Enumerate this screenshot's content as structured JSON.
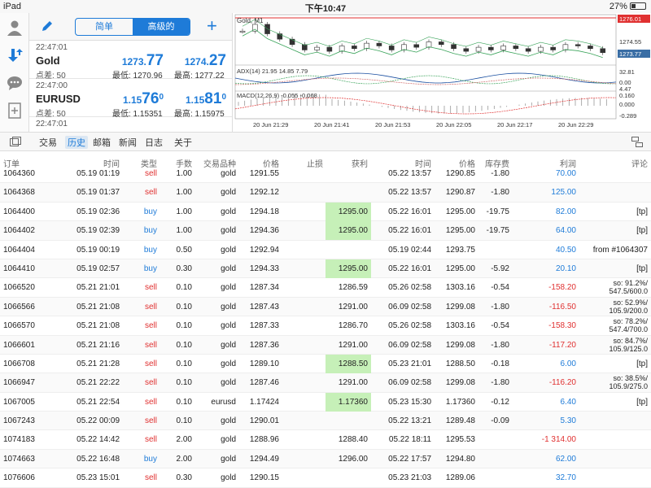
{
  "status": {
    "device": "iPad",
    "time": "下午10:47",
    "battery": "27%"
  },
  "quotes": {
    "mode_simple": "简单",
    "mode_advanced": "高级的",
    "rows": [
      {
        "time": "22:47:01",
        "symbol": "Gold",
        "spread": "点差: 50",
        "bid_a": "1273.",
        "bid_b": "77",
        "bid_c": "",
        "ask_a": "1274.",
        "ask_b": "27",
        "ask_c": "",
        "low": "最低: 1270.96",
        "high": "最高: 1277.22"
      },
      {
        "time": "22:47:00",
        "symbol": "EURUSD",
        "spread": "点差: 50",
        "bid_a": "1.15",
        "bid_b": "76",
        "bid_c": "0",
        "ask_a": "1.15",
        "ask_b": "81",
        "ask_c": "0",
        "low": "最低: 1.15351",
        "high": "最高: 1.15975"
      },
      {
        "time": "22:47:01",
        "symbol": "",
        "spread": "",
        "bid_a": "",
        "bid_b": "",
        "bid_c": "",
        "ask_a": "",
        "ask_b": "",
        "ask_c": "",
        "low": "",
        "high": ""
      }
    ]
  },
  "chart_data": {
    "type": "line",
    "title": "Gold, M1",
    "price_labels": [
      "1276.01",
      "1274.55",
      "1273.77"
    ],
    "adx_label": "ADX(14) 21.95 14.85 7.79",
    "adx_ticks": [
      "32.81",
      "0.00"
    ],
    "macd_label": "MACD(12,26,9) -0.055 -0.068",
    "macd_ticks": [
      "4.47",
      "0.160",
      "0.000",
      "-0.289"
    ],
    "x_labels": [
      "20 Jun 21:29",
      "20 Jun 21:41",
      "20 Jun 21:53",
      "20 Jun 22:05",
      "20 Jun 22:17",
      "20 Jun 22:29"
    ],
    "close": [
      1275.4,
      1275.9,
      1275.2,
      1274.8,
      1274.4,
      1274.0,
      1274.2,
      1273.9,
      1274.3,
      1274.1,
      1274.5,
      1274.3,
      1274.0,
      1274.4,
      1274.2,
      1274.6,
      1274.4,
      1274.1,
      1273.9,
      1274.2,
      1274.0,
      1274.3,
      1274.1,
      1273.9,
      1274.2,
      1274.0,
      1274.4,
      1274.3,
      1274.1,
      1273.8
    ],
    "ylim": [
      1273.0,
      1276.5
    ]
  },
  "tabs": [
    "交易",
    "历史",
    "邮箱",
    "新闻",
    "日志",
    "关于"
  ],
  "active_tab": "历史",
  "columns": [
    "订单",
    "时间",
    "类型",
    "手数",
    "交易品种",
    "价格",
    "止损",
    "获利",
    "时间",
    "价格",
    "库存费",
    "利润",
    "评论"
  ],
  "rows": [
    {
      "order": "1064360",
      "t1": "05.19 01:19",
      "type": "sell",
      "lots": "1.00",
      "sym": "gold",
      "price": "1291.55",
      "sl": "",
      "tp": "",
      "t2": "05.22 13:57",
      "p2": "1290.85",
      "swap": "-1.80",
      "profit": "70.00",
      "c1": "",
      "c2": ""
    },
    {
      "order": "1064368",
      "t1": "05.19 01:37",
      "type": "sell",
      "lots": "1.00",
      "sym": "gold",
      "price": "1292.12",
      "sl": "",
      "tp": "",
      "t2": "05.22 13:57",
      "p2": "1290.87",
      "swap": "-1.80",
      "profit": "125.00",
      "c1": "",
      "c2": ""
    },
    {
      "order": "1064400",
      "t1": "05.19 02:36",
      "type": "buy",
      "lots": "1.00",
      "sym": "gold",
      "price": "1294.18",
      "sl": "",
      "tp": "1295.00",
      "t2": "05.22 16:01",
      "p2": "1295.00",
      "swap": "-19.75",
      "profit": "82.00",
      "c1": "[tp]",
      "c2": ""
    },
    {
      "order": "1064402",
      "t1": "05.19 02:39",
      "type": "buy",
      "lots": "1.00",
      "sym": "gold",
      "price": "1294.36",
      "sl": "",
      "tp": "1295.00",
      "t2": "05.22 16:01",
      "p2": "1295.00",
      "swap": "-19.75",
      "profit": "64.00",
      "c1": "[tp]",
      "c2": ""
    },
    {
      "order": "1064404",
      "t1": "05.19 00:19",
      "type": "buy",
      "lots": "0.50",
      "sym": "gold",
      "price": "1292.94",
      "sl": "",
      "tp": "",
      "t2": "05.19 02:44",
      "p2": "1293.75",
      "swap": "",
      "profit": "40.50",
      "c1": "from #1064307",
      "c2": ""
    },
    {
      "order": "1064410",
      "t1": "05.19 02:57",
      "type": "buy",
      "lots": "0.30",
      "sym": "gold",
      "price": "1294.33",
      "sl": "",
      "tp": "1295.00",
      "t2": "05.22 16:01",
      "p2": "1295.00",
      "swap": "-5.92",
      "profit": "20.10",
      "c1": "[tp]",
      "c2": ""
    },
    {
      "order": "1066520",
      "t1": "05.21 21:01",
      "type": "sell",
      "lots": "0.10",
      "sym": "gold",
      "price": "1287.34",
      "sl": "",
      "tp": "1286.59",
      "t2": "05.26 02:58",
      "p2": "1303.16",
      "swap": "-0.54",
      "profit": "-158.20",
      "c1": "so: 91.2%/",
      "c2": "547.5/600.0"
    },
    {
      "order": "1066566",
      "t1": "05.21 21:08",
      "type": "sell",
      "lots": "0.10",
      "sym": "gold",
      "price": "1287.43",
      "sl": "",
      "tp": "1291.00",
      "t2": "06.09 02:58",
      "p2": "1299.08",
      "swap": "-1.80",
      "profit": "-116.50",
      "c1": "so: 52.9%/",
      "c2": "105.9/200.0"
    },
    {
      "order": "1066570",
      "t1": "05.21 21:08",
      "type": "sell",
      "lots": "0.10",
      "sym": "gold",
      "price": "1287.33",
      "sl": "",
      "tp": "1286.70",
      "t2": "05.26 02:58",
      "p2": "1303.16",
      "swap": "-0.54",
      "profit": "-158.30",
      "c1": "so: 78.2%/",
      "c2": "547.4/700.0"
    },
    {
      "order": "1066601",
      "t1": "05.21 21:16",
      "type": "sell",
      "lots": "0.10",
      "sym": "gold",
      "price": "1287.36",
      "sl": "",
      "tp": "1291.00",
      "t2": "06.09 02:58",
      "p2": "1299.08",
      "swap": "-1.80",
      "profit": "-117.20",
      "c1": "so: 84.7%/",
      "c2": "105.9/125.0"
    },
    {
      "order": "1066708",
      "t1": "05.21 21:28",
      "type": "sell",
      "lots": "0.10",
      "sym": "gold",
      "price": "1289.10",
      "sl": "",
      "tp": "1288.50",
      "t2": "05.23 21:01",
      "p2": "1288.50",
      "swap": "-0.18",
      "profit": "6.00",
      "c1": "[tp]",
      "c2": ""
    },
    {
      "order": "1066947",
      "t1": "05.21 22:22",
      "type": "sell",
      "lots": "0.10",
      "sym": "gold",
      "price": "1287.46",
      "sl": "",
      "tp": "1291.00",
      "t2": "06.09 02:58",
      "p2": "1299.08",
      "swap": "-1.80",
      "profit": "-116.20",
      "c1": "so: 38.5%/",
      "c2": "105.9/275.0"
    },
    {
      "order": "1067005",
      "t1": "05.21 22:54",
      "type": "sell",
      "lots": "0.10",
      "sym": "eurusd",
      "price": "1.17424",
      "sl": "",
      "tp": "1.17360",
      "t2": "05.23 15:30",
      "p2": "1.17360",
      "swap": "-0.12",
      "profit": "6.40",
      "c1": "[tp]",
      "c2": ""
    },
    {
      "order": "1067243",
      "t1": "05.22 00:09",
      "type": "sell",
      "lots": "0.10",
      "sym": "gold",
      "price": "1290.01",
      "sl": "",
      "tp": "",
      "t2": "05.22 13:21",
      "p2": "1289.48",
      "swap": "-0.09",
      "profit": "5.30",
      "c1": "",
      "c2": ""
    },
    {
      "order": "1074183",
      "t1": "05.22 14:42",
      "type": "sell",
      "lots": "2.00",
      "sym": "gold",
      "price": "1288.96",
      "sl": "",
      "tp": "1288.40",
      "t2": "05.22 18:11",
      "p2": "1295.53",
      "swap": "",
      "profit": "-1 314.00",
      "c1": "",
      "c2": ""
    },
    {
      "order": "1074663",
      "t1": "05.22 16:48",
      "type": "buy",
      "lots": "2.00",
      "sym": "gold",
      "price": "1294.49",
      "sl": "",
      "tp": "1296.00",
      "t2": "05.22 17:57",
      "p2": "1294.80",
      "swap": "",
      "profit": "62.00",
      "c1": "",
      "c2": ""
    },
    {
      "order": "1076606",
      "t1": "05.23 15:01",
      "type": "sell",
      "lots": "0.30",
      "sym": "gold",
      "price": "1290.15",
      "sl": "",
      "tp": "",
      "t2": "05.23 21:03",
      "p2": "1289.06",
      "swap": "",
      "profit": "32.70",
      "c1": "",
      "c2": ""
    }
  ],
  "tp_highlight": [
    2,
    3,
    5,
    10,
    12
  ]
}
